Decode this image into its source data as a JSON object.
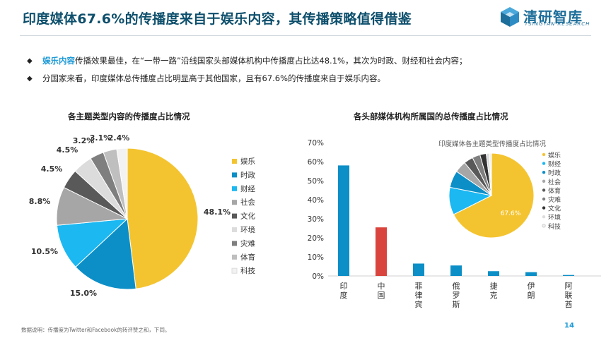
{
  "header": {
    "title": "印度媒体67.6%的传播度来自于娱乐内容，其传播策略值得借鉴",
    "logo_text": "清研智库",
    "logo_sub": "TSINGYAN RESEARCH"
  },
  "bullets": [
    {
      "highlight": "娱乐内容",
      "text": "传播效果最佳，在“一带一路”沿线国家头部媒体机构中传播度占比达48.1%，其次为时政、财经和社会内容；"
    },
    {
      "highlight": "",
      "text": "分国家来看，印度媒体总传播度占比明显高于其他国家，且有67.6%的传播度来自于娱乐内容。"
    }
  ],
  "chart_data": [
    {
      "type": "pie",
      "title": "各主题类型内容的传播度占比情况",
      "categories": [
        "娱乐",
        "时政",
        "财经",
        "社会",
        "文化",
        "环境",
        "灾难",
        "体育",
        "科技"
      ],
      "values": [
        48.1,
        15.0,
        10.5,
        8.8,
        4.5,
        4.5,
        3.2,
        3.1,
        2.4
      ],
      "labels": [
        "48.1%",
        "15.0%",
        "10.5%",
        "8.8%",
        "4.5%",
        "4.5%",
        "3.2%",
        "3.1%",
        "2.4%"
      ],
      "colors": [
        "#f4c430",
        "#0c8fc7",
        "#1bb8f2",
        "#a6a6a6",
        "#595959",
        "#dcdcdc",
        "#7f7f7f",
        "#bfbfbf",
        "#f2f2f2"
      ],
      "legend": "right"
    },
    {
      "type": "bar",
      "title": "各头部媒体机构所属国的总传播度占比情况",
      "categories": [
        "印度",
        "中国",
        "菲律宾",
        "俄罗斯",
        "捷克",
        "伊朗",
        "阿联酋"
      ],
      "values": [
        58,
        25.5,
        6.5,
        5.5,
        2.5,
        2.0,
        0.5
      ],
      "colors": [
        "#0c8fc7",
        "#d9453e",
        "#0c8fc7",
        "#0c8fc7",
        "#0c8fc7",
        "#0c8fc7",
        "#0c8fc7"
      ],
      "ylim": [
        0,
        70
      ],
      "yticks": [
        "0%",
        "10%",
        "20%",
        "30%",
        "40%",
        "50%",
        "60%",
        "70%"
      ]
    },
    {
      "type": "pie",
      "title": "印度媒体各主题类型传播度占比情况",
      "categories": [
        "娱乐",
        "财经",
        "时政",
        "社会",
        "体育",
        "灾难",
        "文化",
        "环境",
        "科技"
      ],
      "values": [
        67.6,
        10.5,
        6.5,
        4.5,
        3.5,
        3.0,
        2.4,
        1.2,
        0.8
      ],
      "center_label": "67.6%",
      "colors": [
        "#f4c430",
        "#1bb8f2",
        "#0c8fc7",
        "#a6a6a6",
        "#595959",
        "#7f7f7f",
        "#333333",
        "#dcdcdc",
        "#f2f2f2"
      ],
      "legend": "right"
    }
  ],
  "footnote": "数据说明：传播度为Twitter和Facebook的转评赞之和，下同。",
  "page_number": "14"
}
